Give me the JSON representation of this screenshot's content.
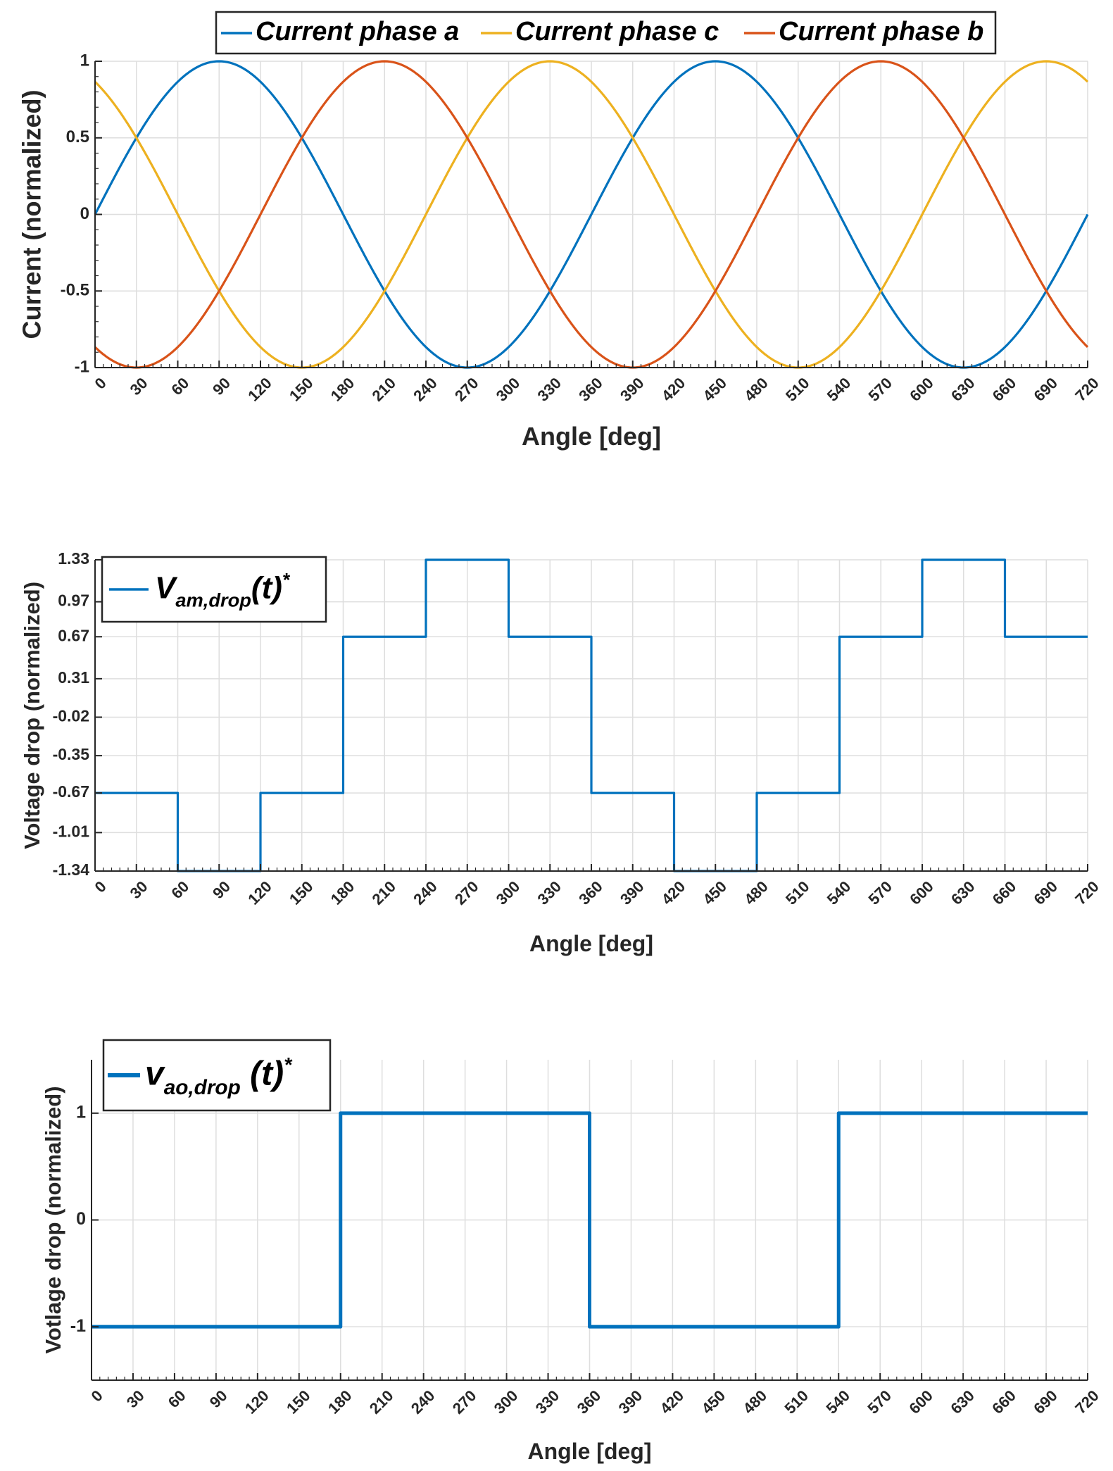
{
  "chart_data": [
    {
      "type": "line",
      "title": "",
      "xlabel": "Angle [deg]",
      "ylabel": "Current (normalized)",
      "xlim": [
        0,
        720
      ],
      "ylim": [
        -1,
        1
      ],
      "grid": true,
      "xticks": [
        0,
        30,
        60,
        90,
        120,
        150,
        180,
        210,
        240,
        270,
        300,
        330,
        360,
        390,
        420,
        450,
        480,
        510,
        540,
        570,
        600,
        630,
        660,
        690,
        720
      ],
      "yticks": [
        -1,
        -0.5,
        0,
        0.5,
        1
      ],
      "ytick_labels": [
        "-1",
        "-0.5",
        "0",
        "0.5",
        "1"
      ],
      "legend_position": "top",
      "series": [
        {
          "name": "Current phase a",
          "color": "#0072BD",
          "function": "sin",
          "phase_deg": 0,
          "amplitude": 1
        },
        {
          "name": "Current phase c",
          "color": "#EDB120",
          "function": "sin",
          "phase_deg": 120,
          "amplitude": 1
        },
        {
          "name": "Current phase b",
          "color": "#D95319",
          "function": "sin",
          "phase_deg": -120,
          "amplitude": 1
        }
      ]
    },
    {
      "type": "line",
      "title": "",
      "xlabel": "Angle [deg]",
      "ylabel": "Voltage drop (normalized)",
      "xlim": [
        0,
        720
      ],
      "ylim": [
        -1.34,
        1.33
      ],
      "grid": true,
      "xticks": [
        0,
        30,
        60,
        90,
        120,
        150,
        180,
        210,
        240,
        270,
        300,
        330,
        360,
        390,
        420,
        450,
        480,
        510,
        540,
        570,
        600,
        630,
        660,
        690,
        720
      ],
      "yticks": [
        -1.34,
        -1.01,
        -0.67,
        -0.35,
        -0.02,
        0.31,
        0.67,
        0.97,
        1.33
      ],
      "ytick_labels": [
        "-1.34",
        "-1.01",
        "-0.67",
        "-0.35",
        "-0.02",
        "0.31",
        "0.67",
        "0.97",
        "1.33"
      ],
      "legend_position": "top-left",
      "series": [
        {
          "name": "V_am,drop(t)*",
          "color": "#0072BD",
          "x": [
            0,
            60,
            60,
            120,
            120,
            180,
            180,
            240,
            240,
            300,
            300,
            360,
            360,
            420,
            420,
            480,
            480,
            540,
            540,
            600,
            600,
            660,
            660,
            720
          ],
          "y": [
            -0.67,
            -0.67,
            -1.34,
            -1.34,
            -0.67,
            -0.67,
            0.67,
            0.67,
            1.33,
            1.33,
            0.67,
            0.67,
            -0.67,
            -0.67,
            -1.34,
            -1.34,
            -0.67,
            -0.67,
            0.67,
            0.67,
            1.33,
            1.33,
            0.67,
            0.67
          ]
        }
      ]
    },
    {
      "type": "line",
      "title": "",
      "xlabel": "Angle [deg]",
      "ylabel": "Votlage drop (normalized)",
      "xlim": [
        0,
        720
      ],
      "ylim": [
        -1.5,
        1.5
      ],
      "grid": true,
      "xticks": [
        0,
        30,
        60,
        90,
        120,
        150,
        180,
        210,
        240,
        270,
        300,
        330,
        360,
        390,
        420,
        450,
        480,
        510,
        540,
        570,
        600,
        630,
        660,
        690,
        720
      ],
      "yticks": [
        -1,
        0,
        1
      ],
      "ytick_labels": [
        "-1",
        "0",
        "1"
      ],
      "legend_position": "top-left",
      "series": [
        {
          "name": "v_ao,drop (t)*",
          "color": "#0072BD",
          "x": [
            0,
            180,
            180,
            360,
            360,
            540,
            540,
            720
          ],
          "y": [
            -1,
            -1,
            1,
            1,
            -1,
            -1,
            1,
            1
          ]
        }
      ]
    }
  ]
}
